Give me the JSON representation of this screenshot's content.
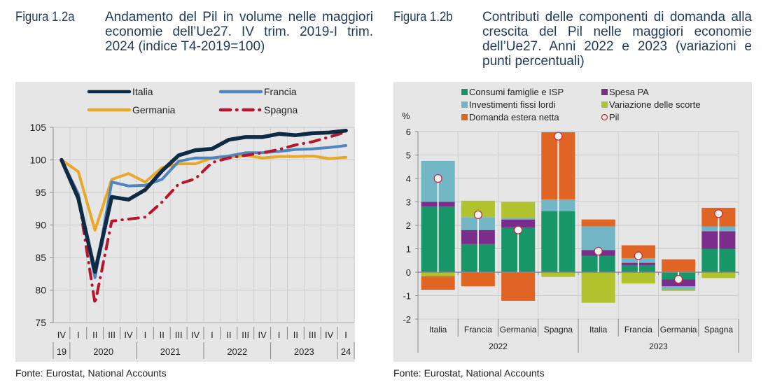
{
  "figures": [
    {
      "label": "Figura 1.2a",
      "title": "Andamento del Pil in volume nelle maggiori economie dell’Ue27. IV trim. 2019-I trim. 2024 (indice T4-2019=100)",
      "source": "Fonte: Eurostat, National Accounts"
    },
    {
      "label": "Figura 1.2b",
      "title": "Contributi delle componenti di domanda alla crescita del Pil nelle maggiori economie dell’Ue27. Anni 2022 e 2023 (variazioni e punti percentuali)",
      "source": "Fonte: Eurostat, National Accounts"
    }
  ],
  "chart_data": [
    {
      "type": "line",
      "title": "Andamento del Pil in volume nelle maggiori economie dell’Ue27. IV trim. 2019-I trim. 2024 (indice T4-2019=100)",
      "xlabel": "",
      "ylabel": "",
      "ylim": [
        75,
        105
      ],
      "yticks": [
        75,
        80,
        85,
        90,
        95,
        100,
        105
      ],
      "grid": true,
      "legend": "top",
      "x": [
        "IV",
        "I",
        "II",
        "III",
        "IV",
        "I",
        "II",
        "III",
        "IV",
        "I",
        "II",
        "III",
        "IV",
        "I",
        "II",
        "III",
        "IV",
        "I"
      ],
      "year_groups": [
        {
          "label": "19",
          "span": 1
        },
        {
          "label": "2020",
          "span": 4
        },
        {
          "label": "2021",
          "span": 4
        },
        {
          "label": "2022",
          "span": 4
        },
        {
          "label": "2023",
          "span": 4
        },
        {
          "label": "24",
          "span": 1
        }
      ],
      "series": [
        {
          "name": "Italia",
          "color": "#0d2b45",
          "style": "solid",
          "values": [
            100,
            94.1,
            82.8,
            94.3,
            93.9,
            95.4,
            98.3,
            100.7,
            101.5,
            101.7,
            103.1,
            103.5,
            103.5,
            104.0,
            103.8,
            104.1,
            104.2,
            104.5
          ]
        },
        {
          "name": "Francia",
          "color": "#4f86c1",
          "style": "solid",
          "values": [
            100,
            94.8,
            81.9,
            96.6,
            96.0,
            96.1,
            97.0,
            99.8,
            100.3,
            100.3,
            100.6,
            101.1,
            101.1,
            101.3,
            101.6,
            101.7,
            101.9,
            102.2
          ]
        },
        {
          "name": "Germania",
          "color": "#e8a92a",
          "style": "solid",
          "values": [
            100,
            98.2,
            89.2,
            97.0,
            97.9,
            96.6,
            98.8,
            99.4,
            99.4,
            100.3,
            100.4,
            100.7,
            100.3,
            100.5,
            100.5,
            100.6,
            100.2,
            100.4
          ]
        },
        {
          "name": "Spagna",
          "color": "#b5162e",
          "style": "dashdot",
          "values": [
            100,
            94.5,
            77.9,
            90.6,
            90.9,
            91.2,
            93.5,
            96.3,
            97.1,
            99.6,
            100.3,
            100.7,
            101.1,
            101.6,
            102.3,
            102.8,
            103.5,
            104.3
          ]
        }
      ]
    },
    {
      "type": "bar",
      "stacked": true,
      "title": "Contributi delle componenti di domanda alla crescita del Pil nelle maggiori economie dell’Ue27. Anni 2022 e 2023 (variazioni e punti percentuali)",
      "ylabel": "%",
      "xlabel": "",
      "ylim": [
        -2,
        6
      ],
      "yticks": [
        -2,
        -1,
        0,
        1,
        2,
        3,
        4,
        5,
        6
      ],
      "grid": true,
      "legend": "top",
      "categories": [
        "Italia",
        "Francia",
        "Germania",
        "Spagna",
        "Italia",
        "Francia",
        "Germania",
        "Spagna"
      ],
      "year_groups": [
        {
          "label": "2022",
          "span": 4
        },
        {
          "label": "2023",
          "span": 4
        }
      ],
      "series": [
        {
          "name": "Consumi famiglie e ISP",
          "color": "#17966a",
          "values": [
            2.8,
            1.2,
            1.9,
            2.6,
            0.7,
            0.3,
            -0.3,
            1.0
          ]
        },
        {
          "name": "Spesa PA",
          "color": "#7b2d8b",
          "values": [
            0.2,
            0.6,
            0.35,
            0.0,
            0.25,
            0.1,
            -0.3,
            0.75
          ]
        },
        {
          "name": "Investimenti fissi lordi",
          "color": "#72b6c6",
          "values": [
            1.75,
            0.55,
            0.05,
            0.5,
            1.0,
            0.2,
            -0.15,
            0.2
          ]
        },
        {
          "name": "Variazione delle scorte",
          "color": "#b0c22e",
          "values": [
            -0.17,
            0.7,
            0.7,
            -0.2,
            -1.3,
            -0.48,
            -0.05,
            -0.25
          ]
        },
        {
          "name": "Domanda estera netta",
          "color": "#e06423",
          "values": [
            -0.58,
            -0.6,
            -1.22,
            2.87,
            0.3,
            0.55,
            0.55,
            0.8
          ]
        }
      ],
      "pil": {
        "name": "Pil",
        "color": "#c8283c",
        "values": [
          4.0,
          2.45,
          1.8,
          5.8,
          0.9,
          0.7,
          -0.3,
          2.5
        ]
      }
    }
  ]
}
